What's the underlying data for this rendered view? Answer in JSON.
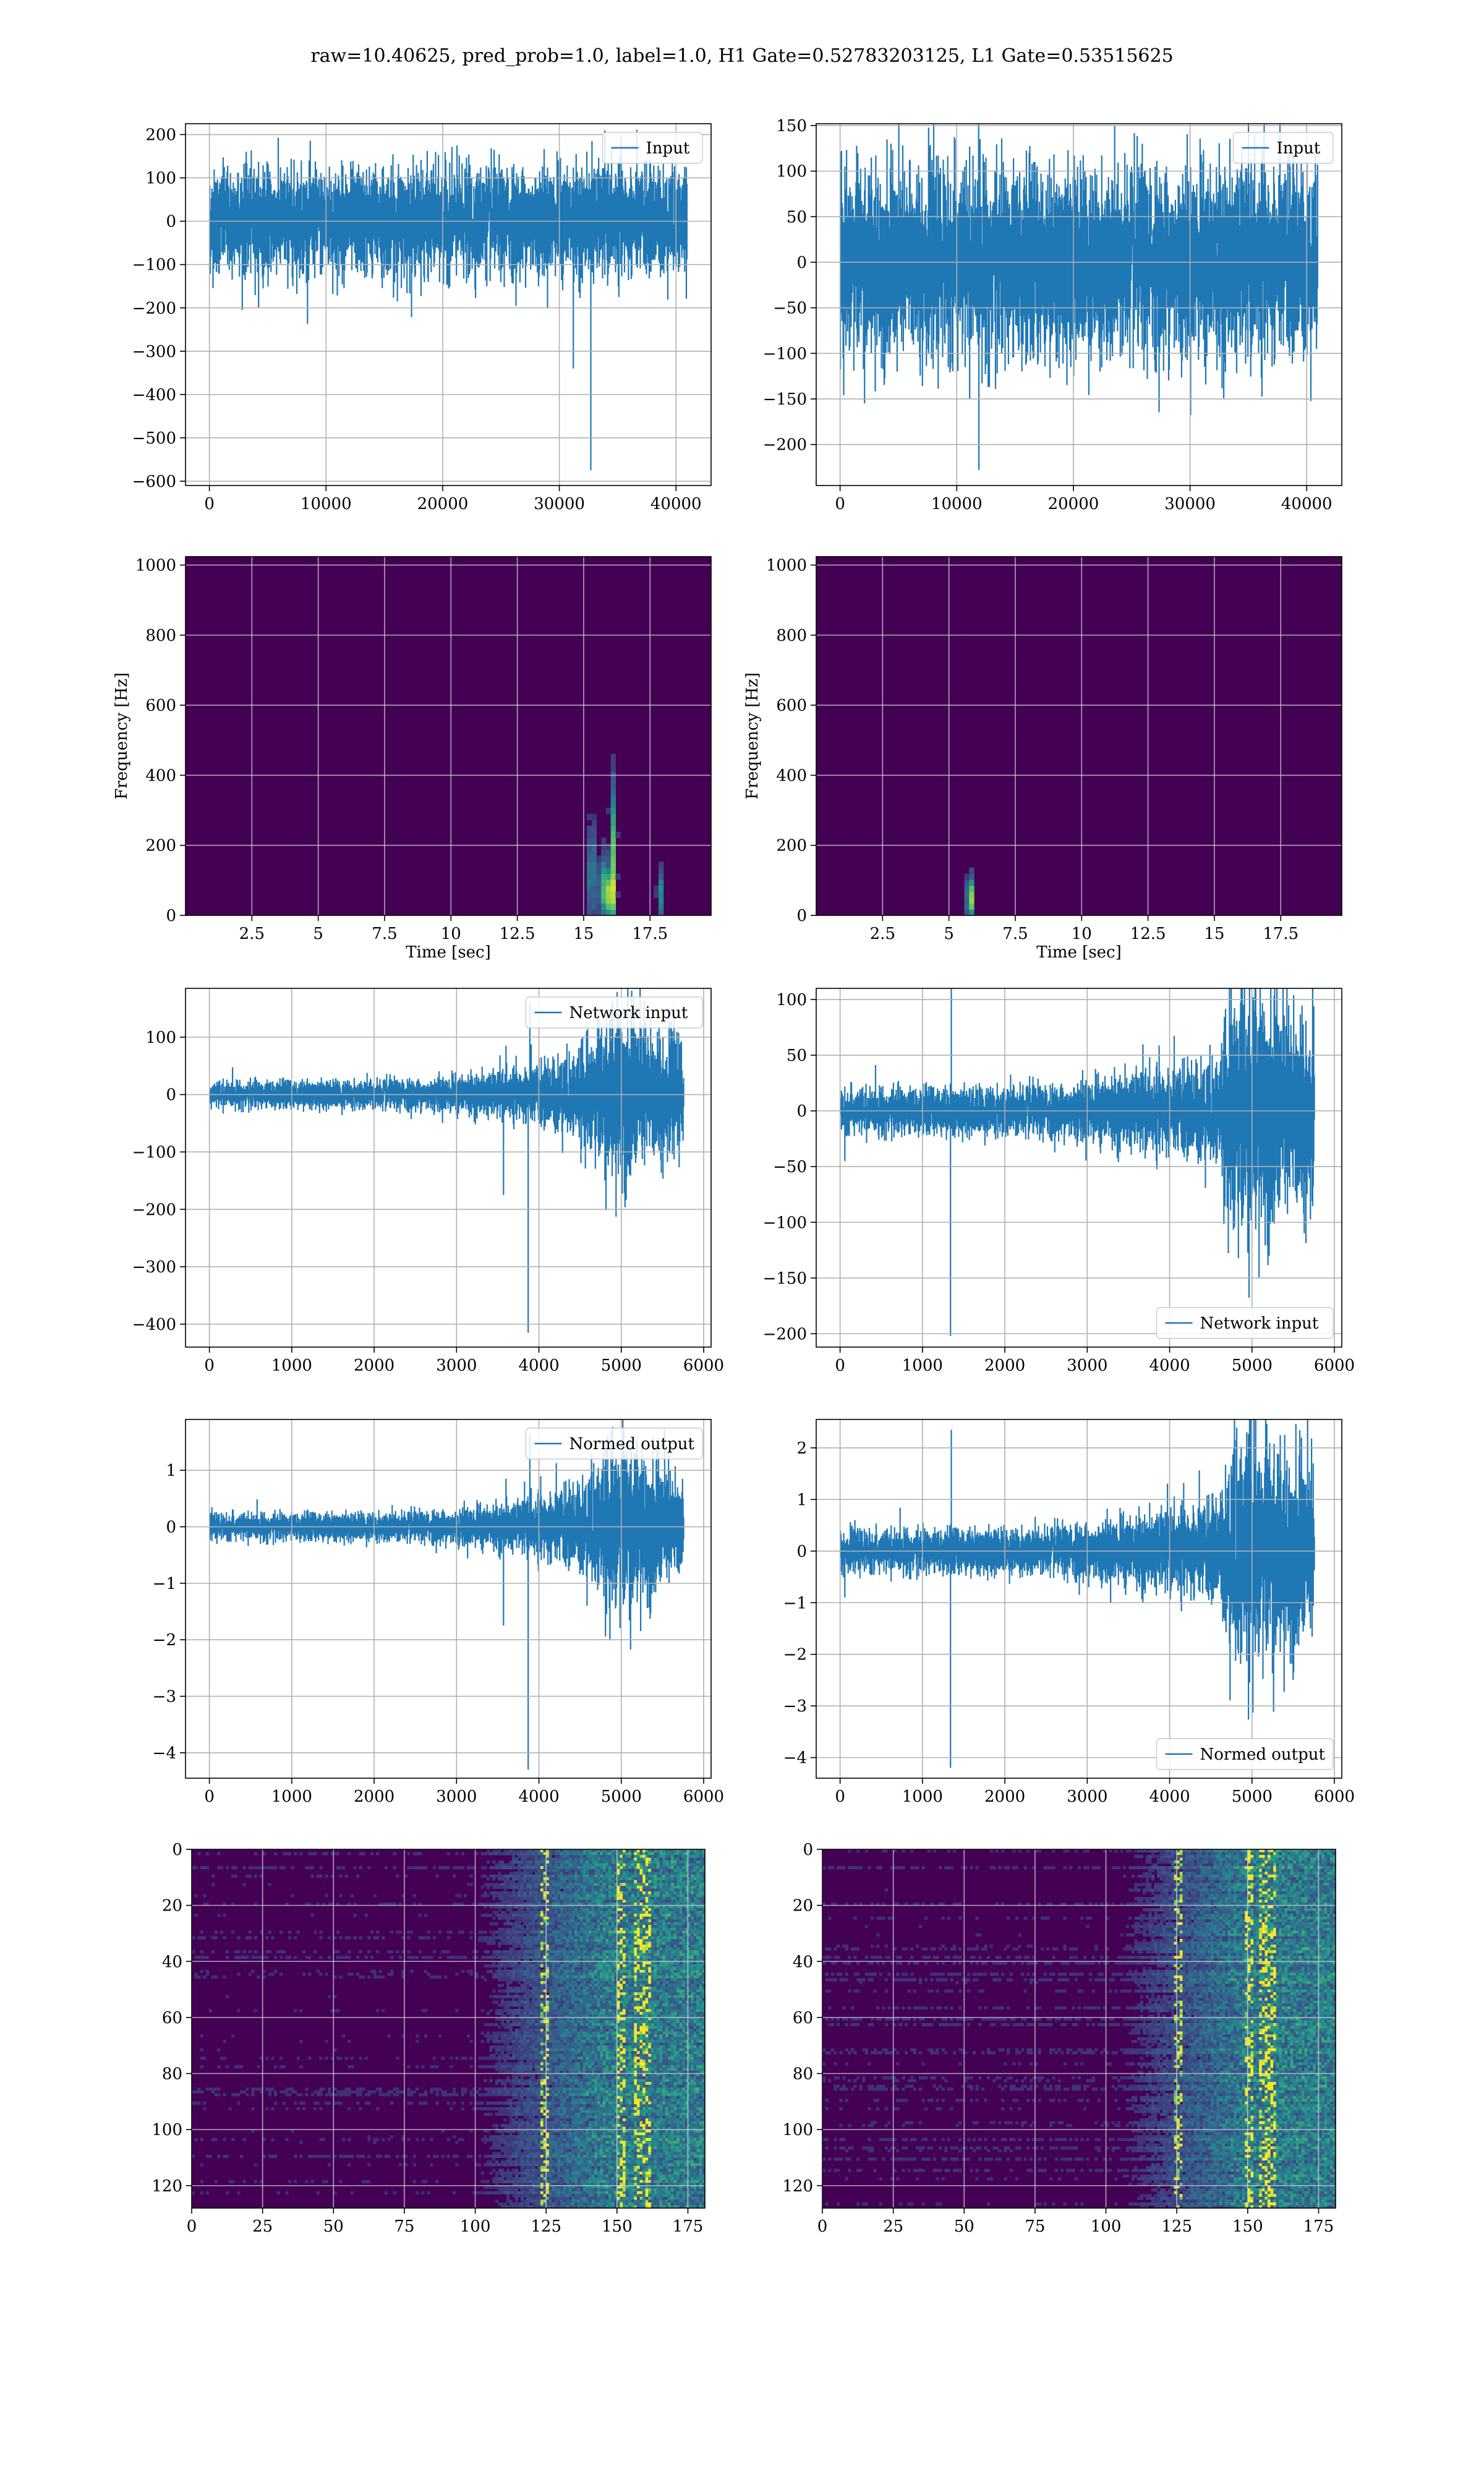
{
  "figure": {
    "title": "raw=10.40625, pred_prob=1.0, label=1.0, H1 Gate=0.52783203125, L1 Gate=0.53515625"
  },
  "chart_data": [
    {
      "id": "h1-input",
      "type": "line",
      "legend": "Input",
      "legend_loc": "upper-right",
      "xlim": [
        -2048,
        43008
      ],
      "ylim": [
        -610,
        225
      ],
      "xticks": [
        0,
        10000,
        20000,
        30000,
        40000
      ],
      "yticks": [
        -600,
        -500,
        -400,
        -300,
        -200,
        -100,
        0,
        100,
        200
      ],
      "signal": {
        "n": 40960,
        "amp": 38,
        "envelope": [
          [
            0,
            1
          ],
          [
            1,
            1
          ]
        ],
        "spikes": [
          [
            0.06,
            112
          ],
          [
            0.31,
            -118
          ],
          [
            0.55,
            -110
          ],
          [
            0.72,
            120
          ],
          [
            0.85,
            110
          ],
          [
            0.98,
            115
          ]
        ],
        "glitches": [
          [
            31200,
            -340
          ],
          [
            31300,
            45
          ],
          [
            32700,
            -575
          ],
          [
            32800,
            185
          ]
        ]
      },
      "grid": true
    },
    {
      "id": "l1-input",
      "type": "line",
      "legend": "Input",
      "legend_loc": "upper-right",
      "xlim": [
        -2048,
        43008
      ],
      "ylim": [
        -245,
        152
      ],
      "xticks": [
        0,
        10000,
        20000,
        30000,
        40000
      ],
      "yticks": [
        -200,
        -150,
        -100,
        -50,
        0,
        50,
        100,
        150
      ],
      "signal": {
        "n": 40960,
        "amp": 32,
        "envelope": [
          [
            0,
            1
          ],
          [
            1,
            1
          ]
        ],
        "spikes": [
          [
            0.01,
            105
          ],
          [
            0.12,
            -120
          ],
          [
            0.39,
            -110
          ],
          [
            0.49,
            117
          ],
          [
            0.63,
            108
          ],
          [
            0.8,
            -100
          ]
        ],
        "glitches": [
          [
            11900,
            -228
          ],
          [
            12000,
            135
          ]
        ]
      },
      "grid": true
    },
    {
      "id": "h1-spectrogram",
      "type": "heatmap",
      "variant": "spectrogram",
      "xlabel": "Time [sec]",
      "ylabel": "Frequency [Hz]",
      "xlim": [
        0,
        19.8
      ],
      "ylim": [
        0,
        1024
      ],
      "xticks": [
        2.5,
        5.0,
        7.5,
        10.0,
        12.5,
        15.0,
        17.5
      ],
      "yticks": [
        0,
        200,
        400,
        600,
        800,
        1000
      ],
      "hotspots": [
        [
          15.3,
          120,
          0.5
        ],
        [
          15.7,
          80,
          0.7
        ],
        [
          16.0,
          60,
          1.0
        ],
        [
          16.1,
          180,
          0.6
        ],
        [
          17.9,
          60,
          0.4
        ]
      ],
      "grid": true
    },
    {
      "id": "l1-spectrogram",
      "type": "heatmap",
      "variant": "spectrogram",
      "xlabel": "Time [sec]",
      "ylabel": "Frequency [Hz]",
      "xlim": [
        0,
        19.8
      ],
      "ylim": [
        0,
        1024
      ],
      "xticks": [
        2.5,
        5.0,
        7.5,
        10.0,
        12.5,
        15.0,
        17.5
      ],
      "yticks": [
        0,
        200,
        400,
        600,
        800,
        1000
      ],
      "hotspots": [
        [
          5.8,
          50,
          0.9
        ]
      ],
      "grid": true
    },
    {
      "id": "h1-network-input",
      "type": "line",
      "legend": "Network input",
      "legend_loc": "upper-right",
      "xlim": [
        -290,
        6090
      ],
      "ylim": [
        -440,
        185
      ],
      "xticks": [
        0,
        1000,
        2000,
        3000,
        4000,
        5000,
        6000
      ],
      "yticks": [
        -400,
        -300,
        -200,
        -100,
        0,
        100
      ],
      "signal": {
        "n": 5760,
        "amp": 7,
        "envelope": [
          [
            0,
            1
          ],
          [
            0.45,
            1.2
          ],
          [
            0.65,
            1.9
          ],
          [
            0.78,
            3.5
          ],
          [
            0.86,
            7
          ],
          [
            0.93,
            5.5
          ],
          [
            0.998,
            4
          ],
          [
            1,
            0
          ]
        ],
        "spikes": [],
        "glitches": [
          [
            3570,
            -175
          ],
          [
            3600,
            85
          ],
          [
            3870,
            -415
          ],
          [
            3890,
            160
          ]
        ]
      },
      "grid": true
    },
    {
      "id": "l1-network-input",
      "type": "line",
      "legend": "Network input",
      "legend_loc": "lower-right",
      "xlim": [
        -290,
        6090
      ],
      "ylim": [
        -212,
        110
      ],
      "xticks": [
        0,
        1000,
        2000,
        3000,
        4000,
        5000,
        6000
      ],
      "yticks": [
        -200,
        -150,
        -100,
        -50,
        0,
        50,
        100
      ],
      "signal": {
        "n": 5760,
        "amp": 6,
        "envelope": [
          [
            0,
            1
          ],
          [
            0.45,
            1.2
          ],
          [
            0.7,
            2
          ],
          [
            0.8,
            2.6
          ],
          [
            0.83,
            6
          ],
          [
            0.9,
            5.5
          ],
          [
            0.998,
            4.5
          ],
          [
            1,
            0
          ]
        ],
        "spikes": [
          [
            0.01,
            -45
          ]
        ],
        "glitches": [
          [
            1340,
            -202
          ],
          [
            1350,
            112
          ]
        ]
      },
      "grid": true
    },
    {
      "id": "h1-normed-output",
      "type": "line",
      "legend": "Normed output",
      "legend_loc": "upper-right",
      "xlim": [
        -290,
        6090
      ],
      "ylim": [
        -4.45,
        1.9
      ],
      "xticks": [
        0,
        1000,
        2000,
        3000,
        4000,
        5000,
        6000
      ],
      "yticks": [
        -4,
        -3,
        -2,
        -1,
        0,
        1
      ],
      "signal": {
        "n": 5760,
        "amp": 0.07,
        "envelope": [
          [
            0,
            1
          ],
          [
            0.45,
            1.2
          ],
          [
            0.65,
            1.9
          ],
          [
            0.78,
            3.5
          ],
          [
            0.86,
            7
          ],
          [
            0.93,
            5.5
          ],
          [
            0.998,
            4
          ],
          [
            1,
            0
          ]
        ],
        "spikes": [],
        "glitches": [
          [
            3570,
            -1.75
          ],
          [
            3600,
            0.85
          ],
          [
            3870,
            -4.3
          ],
          [
            3890,
            1.65
          ]
        ]
      },
      "grid": true
    },
    {
      "id": "l1-normed-output",
      "type": "line",
      "legend": "Normed output",
      "legend_loc": "lower-right",
      "xlim": [
        -290,
        6090
      ],
      "ylim": [
        -4.4,
        2.55
      ],
      "xticks": [
        0,
        1000,
        2000,
        3000,
        4000,
        5000,
        6000
      ],
      "yticks": [
        -4,
        -3,
        -2,
        -1,
        0,
        1,
        2
      ],
      "signal": {
        "n": 5760,
        "amp": 0.12,
        "envelope": [
          [
            0,
            1
          ],
          [
            0.45,
            1.2
          ],
          [
            0.7,
            2
          ],
          [
            0.8,
            2.6
          ],
          [
            0.83,
            6
          ],
          [
            0.9,
            5.5
          ],
          [
            0.998,
            4.5
          ],
          [
            1,
            0
          ]
        ],
        "spikes": [
          [
            0.01,
            -0.9
          ]
        ],
        "glitches": [
          [
            1340,
            -4.2
          ],
          [
            1350,
            2.35
          ]
        ]
      },
      "grid": true
    },
    {
      "id": "h1-feature-map",
      "type": "heatmap",
      "variant": "feature-map",
      "xlim": [
        0,
        181
      ],
      "ylim": [
        128,
        0
      ],
      "xticks": [
        0,
        25,
        50,
        75,
        100,
        125,
        150,
        175
      ],
      "yticks": [
        0,
        20,
        40,
        60,
        80,
        100,
        120
      ],
      "activity_start": 100,
      "bright_columns": [
        124,
        151,
        157,
        160
      ],
      "grid": true
    },
    {
      "id": "l1-feature-map",
      "type": "heatmap",
      "variant": "feature-map",
      "xlim": [
        0,
        181
      ],
      "ylim": [
        128,
        0
      ],
      "xticks": [
        0,
        25,
        50,
        75,
        100,
        125,
        150,
        175
      ],
      "yticks": [
        0,
        20,
        40,
        60,
        80,
        100,
        120
      ],
      "activity_start": 105,
      "bright_columns": [
        125,
        150,
        155,
        158
      ],
      "grid": true
    }
  ],
  "colors": {
    "line": "#1f77b4",
    "grid": "#b0b0b0",
    "viridis_low": "#440154",
    "viridis_mid": "#21918c",
    "viridis_high": "#fde725"
  }
}
